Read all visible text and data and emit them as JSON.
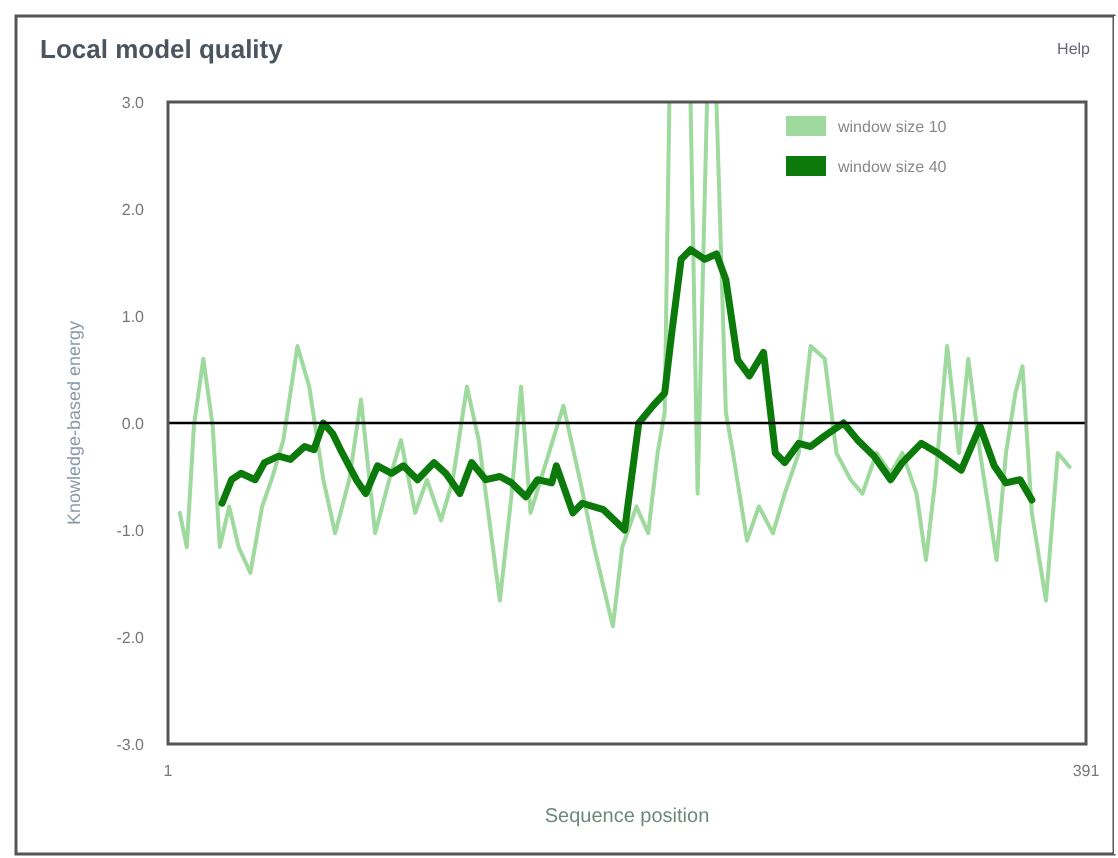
{
  "chart_data": {
    "type": "line",
    "title": "Local model quality",
    "xlabel": "Sequence position",
    "ylabel": "Knowledge-based energy",
    "annotations": [
      "Help"
    ],
    "xlim": [
      1,
      391
    ],
    "xticks": [
      1,
      391
    ],
    "ylim": [
      -3,
      3
    ],
    "yticks": [
      {
        "value": -3,
        "label": "-3.0"
      },
      {
        "value": -2,
        "label": "-2.0"
      },
      {
        "value": -1,
        "label": "-1.0"
      },
      {
        "value": 0,
        "label": "0.0"
      },
      {
        "value": 1,
        "label": "1.0"
      },
      {
        "value": 2,
        "label": "2.0"
      },
      {
        "value": 3,
        "label": "3.0"
      }
    ],
    "ref_lines": [
      {
        "axis": "y",
        "value": 0,
        "color": "#000000"
      }
    ],
    "grid": false,
    "legend": "top right",
    "marker": "none",
    "line_style": "solid",
    "series": [
      {
        "name": "window size 10",
        "color": "#9ed99e",
        "x": [
          6,
          9,
          12,
          16,
          20,
          23,
          27,
          31,
          36,
          41,
          45,
          50,
          56,
          61,
          67,
          72,
          78,
          83,
          89,
          95,
          100,
          106,
          111,
          117,
          122,
          128,
          133,
          139,
          142,
          147,
          151,
          155,
          169,
          176,
          182,
          186,
          190,
          194,
          200,
          205,
          209,
          212,
          214,
          218,
          223,
          226,
          230,
          232,
          234,
          238,
          241,
          247,
          252,
          258,
          263,
          269,
          274,
          280,
          285,
          291,
          296,
          302,
          308,
          313,
          319,
          323,
          327,
          332,
          337,
          341,
          346,
          353,
          357,
          361,
          364,
          368,
          374,
          379,
          384
        ],
        "values": [
          -0.84,
          -1.16,
          -0.03,
          0.6,
          -0.03,
          -1.16,
          -0.78,
          -1.16,
          -1.4,
          -0.78,
          -0.53,
          -0.16,
          0.72,
          0.34,
          -0.53,
          -1.03,
          -0.53,
          0.22,
          -1.03,
          -0.53,
          -0.16,
          -0.84,
          -0.53,
          -0.91,
          -0.53,
          0.34,
          -0.16,
          -1.16,
          -1.66,
          -0.66,
          0.34,
          -0.84,
          0.16,
          -0.53,
          -1.16,
          -1.53,
          -1.9,
          -1.16,
          -0.78,
          -1.03,
          -0.28,
          0.1,
          3.0,
          null,
          3.0,
          -0.66,
          3.0,
          null,
          3.0,
          0.1,
          -0.28,
          -1.1,
          -0.78,
          -1.03,
          -0.66,
          -0.28,
          0.72,
          0.6,
          -0.28,
          -0.53,
          -0.66,
          -0.28,
          -0.47,
          -0.28,
          -0.66,
          -1.28,
          -0.53,
          0.72,
          -0.28,
          0.6,
          -0.28,
          -1.28,
          -0.28,
          0.28,
          0.53,
          -0.84,
          -1.66,
          -0.28,
          -0.41
        ]
      },
      {
        "name": "window size 40",
        "color": "#0b7a0b",
        "x": [
          24,
          28,
          32,
          38,
          42,
          48,
          53,
          59,
          63,
          67,
          71,
          75,
          81,
          85,
          90,
          96,
          101,
          107,
          114,
          119,
          125,
          130,
          136,
          142,
          147,
          153,
          158,
          164,
          166,
          173,
          177,
          186,
          195,
          201,
          207,
          212,
          215,
          219,
          223,
          229,
          234,
          238,
          243,
          248,
          254,
          259,
          263,
          269,
          274,
          280,
          288,
          294,
          301,
          308,
          313,
          321,
          328,
          338,
          346,
          352,
          357,
          363,
          368
        ],
        "values": [
          -0.75,
          -0.53,
          -0.47,
          -0.53,
          -0.37,
          -0.31,
          -0.34,
          -0.22,
          -0.25,
          0,
          -0.1,
          -0.28,
          -0.53,
          -0.66,
          -0.4,
          -0.47,
          -0.4,
          -0.53,
          -0.37,
          -0.47,
          -0.66,
          -0.37,
          -0.53,
          -0.5,
          -0.56,
          -0.69,
          -0.53,
          -0.56,
          -0.4,
          -0.84,
          -0.75,
          -0.81,
          -1.0,
          0,
          0.16,
          0.28,
          0.84,
          1.53,
          1.62,
          1.53,
          1.58,
          1.34,
          0.59,
          0.44,
          0.66,
          -0.28,
          -0.37,
          -0.19,
          -0.22,
          -0.12,
          0,
          -0.16,
          -0.31,
          -0.53,
          -0.37,
          -0.19,
          -0.28,
          -0.44,
          -0.03,
          -0.4,
          -0.56,
          -0.53,
          -0.72
        ]
      }
    ]
  }
}
